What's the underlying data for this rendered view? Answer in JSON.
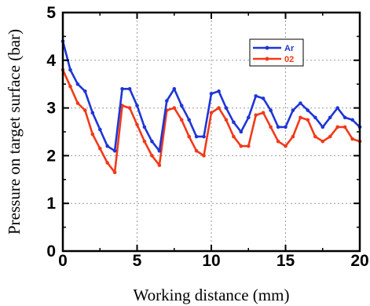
{
  "chart_data": {
    "type": "line",
    "xlabel": "Working distance (mm)",
    "ylabel": "Pressure on target surface (bar)",
    "xlim": [
      0,
      20
    ],
    "ylim": [
      0,
      5
    ],
    "xticks": [
      "0",
      "5",
      "10",
      "15",
      "20"
    ],
    "yticks": [
      "0",
      "1",
      "2",
      "3",
      "4",
      "5"
    ],
    "grid": true,
    "legend_position": "top-right",
    "x": [
      0,
      0.5,
      1,
      1.5,
      2,
      2.5,
      3,
      3.5,
      4,
      4.5,
      5,
      5.5,
      6,
      6.5,
      7,
      7.5,
      8,
      8.5,
      9,
      9.5,
      10,
      10.5,
      11,
      11.5,
      12,
      12.5,
      13,
      13.5,
      14,
      14.5,
      15,
      15.5,
      16,
      16.5,
      17,
      17.5,
      18,
      18.5,
      19,
      19.5,
      20
    ],
    "series": [
      {
        "name": "Ar",
        "color": "#1f35d6",
        "values": [
          4.4,
          3.8,
          3.5,
          3.35,
          2.9,
          2.55,
          2.2,
          2.1,
          3.4,
          3.4,
          3.05,
          2.6,
          2.3,
          2.1,
          3.15,
          3.4,
          3.05,
          2.75,
          2.4,
          2.4,
          3.3,
          3.35,
          3.0,
          2.7,
          2.5,
          2.8,
          3.25,
          3.2,
          2.95,
          2.6,
          2.6,
          2.95,
          3.1,
          2.95,
          2.8,
          2.6,
          2.8,
          3.0,
          2.8,
          2.75,
          2.6
        ]
      },
      {
        "name": "02",
        "color": "#f23a1a",
        "values": [
          3.8,
          3.45,
          3.1,
          2.95,
          2.45,
          2.15,
          1.85,
          1.65,
          3.05,
          3.0,
          2.65,
          2.3,
          2.0,
          1.8,
          2.95,
          3.0,
          2.75,
          2.4,
          2.1,
          2.0,
          2.9,
          3.0,
          2.75,
          2.4,
          2.2,
          2.2,
          2.85,
          2.9,
          2.6,
          2.3,
          2.2,
          2.4,
          2.8,
          2.75,
          2.4,
          2.3,
          2.4,
          2.6,
          2.6,
          2.35,
          2.3
        ]
      }
    ]
  }
}
